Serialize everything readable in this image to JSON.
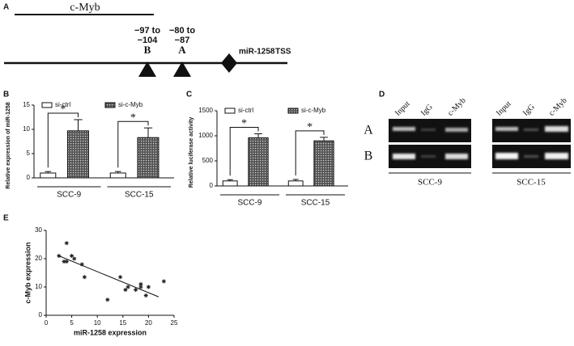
{
  "panel_a": {
    "label": "A",
    "gene": "c-Myb",
    "sites": [
      {
        "range": [
          "−97 to",
          "−104"
        ],
        "name": "B"
      },
      {
        "range": [
          "−80 to",
          "−87"
        ],
        "name": "A"
      }
    ],
    "mirna": "miR-1258",
    "tss": "TSS"
  },
  "chart_data": [
    {
      "type": "bar",
      "panel_label": "B",
      "ylabel": "Relative expression of miR-1258",
      "categories": [
        "SCC-9",
        "SCC-15"
      ],
      "series": [
        {
          "name": "si-ctrl",
          "color": "#ffffff",
          "hatch": false,
          "values": [
            1.0,
            1.0
          ],
          "errors": [
            0.3,
            0.3
          ]
        },
        {
          "name": "si-c-Myb",
          "color": "#777777",
          "hatch": true,
          "values": [
            9.7,
            8.3
          ],
          "errors": [
            2.3,
            2.0
          ]
        }
      ],
      "annotations": [
        "*",
        "*"
      ],
      "ylim": [
        0,
        15
      ],
      "yticks": [
        0,
        5,
        10,
        15
      ]
    },
    {
      "type": "bar",
      "panel_label": "C",
      "ylabel": "Relative luciferase activity",
      "categories": [
        "SCC-9",
        "SCC-15"
      ],
      "series": [
        {
          "name": "si-ctrl",
          "color": "#ffffff",
          "hatch": false,
          "values": [
            100,
            100
          ],
          "errors": [
            25,
            30
          ]
        },
        {
          "name": "si-c-Myb",
          "color": "#777777",
          "hatch": true,
          "values": [
            960,
            900
          ],
          "errors": [
            80,
            70
          ]
        }
      ],
      "annotations": [
        "*",
        "*"
      ],
      "ylim": [
        0,
        1500
      ],
      "yticks": [
        0,
        500,
        1000,
        1500
      ]
    },
    {
      "type": "scatter",
      "panel_label": "E",
      "xlabel": "miR-1258 expression",
      "ylabel": "c-Myb expression",
      "x": [
        2.5,
        4,
        3.5,
        4,
        5,
        5.5,
        7,
        7.5,
        12,
        14.5,
        15.5,
        16,
        17.5,
        18.5,
        18.5,
        19.5,
        20,
        23
      ],
      "y": [
        21,
        25.5,
        19,
        19,
        21,
        20,
        18,
        13.5,
        5.5,
        13.5,
        9,
        10,
        9,
        11,
        10,
        7,
        10,
        12
      ],
      "trend_line": {
        "x": [
          2.5,
          22
        ],
        "y": [
          21,
          6.5
        ]
      },
      "xlim": [
        0,
        25
      ],
      "ylim": [
        0,
        30
      ],
      "xticks": [
        0,
        5,
        10,
        15,
        20,
        25
      ],
      "yticks": [
        0,
        10,
        20,
        30
      ],
      "color": "#222222"
    }
  ],
  "panel_d": {
    "label": "D",
    "columns": [
      "Input",
      "IgG",
      "c-Myb"
    ],
    "rows": [
      "A",
      "B"
    ],
    "cell_lines": [
      "SCC-9",
      "SCC-15"
    ]
  }
}
